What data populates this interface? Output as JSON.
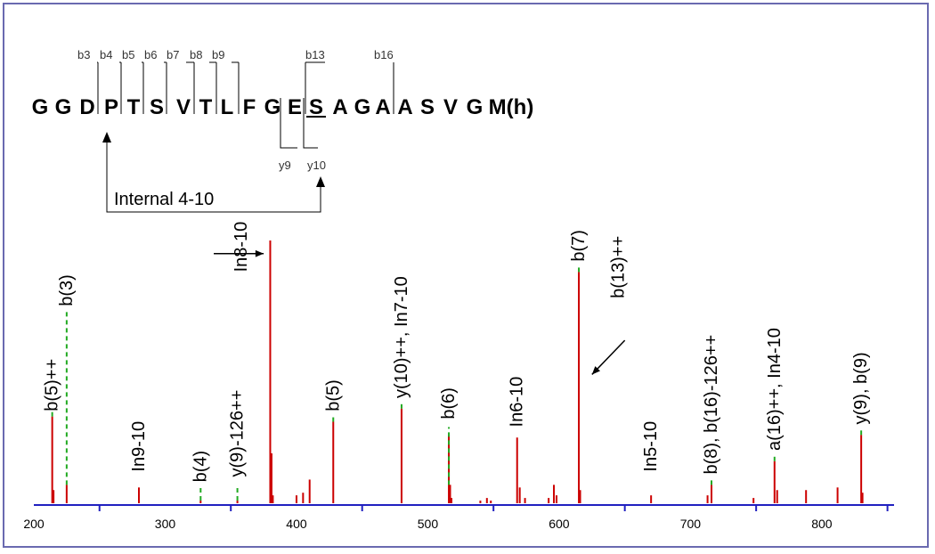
{
  "chart_data": {
    "type": "bar",
    "title": "",
    "xlabel": "",
    "ylabel": "",
    "xlim": [
      200,
      855
    ],
    "ylim": [
      0,
      100
    ],
    "x_ticks": [
      200,
      300,
      400,
      500,
      600,
      700,
      800
    ],
    "colors": {
      "peak": "#cc0000",
      "marker": "#22aa22",
      "axis": "#2020c0"
    },
    "peaks": [
      {
        "mz": 214,
        "intensity": 33
      },
      {
        "mz": 215,
        "intensity": 5
      },
      {
        "mz": 225,
        "intensity": 7
      },
      {
        "mz": 280,
        "intensity": 6
      },
      {
        "mz": 327,
        "intensity": 1
      },
      {
        "mz": 355,
        "intensity": 1
      },
      {
        "mz": 380,
        "intensity": 100
      },
      {
        "mz": 381,
        "intensity": 19
      },
      {
        "mz": 382,
        "intensity": 3
      },
      {
        "mz": 400,
        "intensity": 3
      },
      {
        "mz": 405,
        "intensity": 4
      },
      {
        "mz": 410,
        "intensity": 9
      },
      {
        "mz": 428,
        "intensity": 31
      },
      {
        "mz": 480,
        "intensity": 36
      },
      {
        "mz": 516,
        "intensity": 26
      },
      {
        "mz": 517,
        "intensity": 7
      },
      {
        "mz": 518,
        "intensity": 2
      },
      {
        "mz": 540,
        "intensity": 1
      },
      {
        "mz": 545,
        "intensity": 2
      },
      {
        "mz": 548,
        "intensity": 1
      },
      {
        "mz": 568,
        "intensity": 25
      },
      {
        "mz": 570,
        "intensity": 6
      },
      {
        "mz": 574,
        "intensity": 2
      },
      {
        "mz": 592,
        "intensity": 2
      },
      {
        "mz": 596,
        "intensity": 7
      },
      {
        "mz": 598,
        "intensity": 3
      },
      {
        "mz": 615,
        "intensity": 88
      },
      {
        "mz": 616,
        "intensity": 5
      },
      {
        "mz": 670,
        "intensity": 3
      },
      {
        "mz": 713,
        "intensity": 3
      },
      {
        "mz": 716,
        "intensity": 7
      },
      {
        "mz": 748,
        "intensity": 2
      },
      {
        "mz": 764,
        "intensity": 16
      },
      {
        "mz": 766,
        "intensity": 5
      },
      {
        "mz": 788,
        "intensity": 5
      },
      {
        "mz": 812,
        "intensity": 6
      },
      {
        "mz": 830,
        "intensity": 26
      },
      {
        "mz": 831,
        "intensity": 4
      }
    ],
    "markers": [
      {
        "mz": 214,
        "top": 35,
        "bottom": 33
      },
      {
        "mz": 225,
        "top": 73,
        "bottom": 7
      },
      {
        "mz": 327,
        "top": 6,
        "bottom": 1
      },
      {
        "mz": 355,
        "top": 7,
        "bottom": 1
      },
      {
        "mz": 428,
        "top": 33,
        "bottom": 31
      },
      {
        "mz": 480,
        "top": 38,
        "bottom": 36
      },
      {
        "mz": 516,
        "top": 29,
        "bottom": 7
      },
      {
        "mz": 615,
        "top": 90,
        "bottom": 88
      },
      {
        "mz": 716,
        "top": 9,
        "bottom": 7
      },
      {
        "mz": 764,
        "top": 18,
        "bottom": 16
      },
      {
        "mz": 830,
        "top": 28,
        "bottom": 26
      }
    ],
    "annotations": [
      {
        "text": "b(5)++",
        "mz": 214,
        "base": 35
      },
      {
        "text": "b(3)",
        "mz": 225,
        "base": 75
      },
      {
        "text": "In9-10",
        "mz": 280,
        "base": 12
      },
      {
        "text": "b(4)",
        "mz": 327,
        "base": 8
      },
      {
        "text": "y(9)-126++",
        "mz": 355,
        "base": 10
      },
      {
        "text": "In8-10",
        "mz": 358,
        "base": 88
      },
      {
        "text": "b(5)",
        "mz": 428,
        "base": 35
      },
      {
        "text": "y(10)++, In7-10",
        "mz": 480,
        "base": 40
      },
      {
        "text": "b(6)",
        "mz": 516,
        "base": 32
      },
      {
        "text": "In6-10",
        "mz": 568,
        "base": 29
      },
      {
        "text": "b(7)",
        "mz": 615,
        "base": 92
      },
      {
        "text": "b(13)++",
        "mz": 645,
        "base": 78
      },
      {
        "text": "In5-10",
        "mz": 670,
        "base": 12
      },
      {
        "text": "b(8), b(16)-126++",
        "mz": 716,
        "base": 11
      },
      {
        "text": "a(16)++,  In4-10",
        "mz": 764,
        "base": 20
      },
      {
        "text": "y(9), b(9)",
        "mz": 830,
        "base": 30
      }
    ],
    "arrows": [
      {
        "from": [
          337,
          95
        ],
        "to": [
          375,
          95
        ]
      },
      {
        "from": [
          650,
          62
        ],
        "to": [
          625,
          49
        ]
      }
    ]
  },
  "sequence": {
    "residues": [
      "G",
      "G",
      "D",
      "P",
      "T",
      "S",
      "V",
      "T",
      "L",
      "F",
      "G",
      "E",
      "S",
      "A",
      "G",
      "A",
      "A",
      "S",
      "V",
      "G",
      "M(h)"
    ],
    "b_ions": [
      "b3",
      "b4",
      "b5",
      "b6",
      "b7",
      "b8",
      "b9",
      "b13",
      "b16"
    ],
    "y_ions": [
      "y9",
      "y10"
    ],
    "internal_label": "Internal 4-10"
  }
}
